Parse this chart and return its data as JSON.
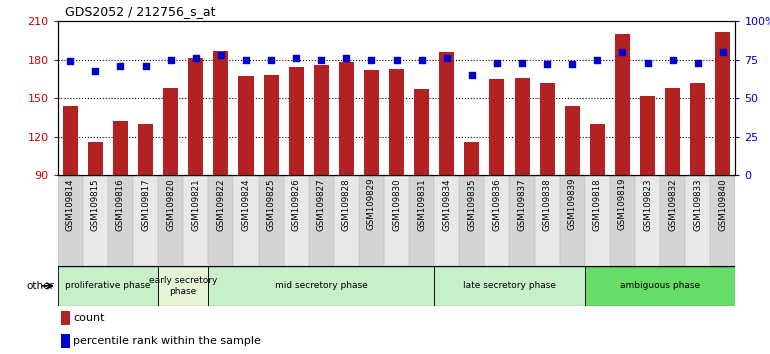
{
  "title": "GDS2052 / 212756_s_at",
  "samples": [
    "GSM109814",
    "GSM109815",
    "GSM109816",
    "GSM109817",
    "GSM109820",
    "GSM109821",
    "GSM109822",
    "GSM109824",
    "GSM109825",
    "GSM109826",
    "GSM109827",
    "GSM109828",
    "GSM109829",
    "GSM109830",
    "GSM109831",
    "GSM109834",
    "GSM109835",
    "GSM109836",
    "GSM109837",
    "GSM109838",
    "GSM109839",
    "GSM109818",
    "GSM109819",
    "GSM109823",
    "GSM109832",
    "GSM109833",
    "GSM109840"
  ],
  "counts": [
    144,
    116,
    132,
    130,
    158,
    181,
    187,
    167,
    168,
    174,
    176,
    178,
    172,
    173,
    157,
    186,
    116,
    165,
    166,
    162,
    144,
    130,
    200,
    152,
    158,
    162,
    202
  ],
  "percentile": [
    74,
    68,
    71,
    71,
    75,
    76,
    78,
    75,
    75,
    76,
    75,
    76,
    75,
    75,
    75,
    76,
    65,
    73,
    73,
    72,
    72,
    75,
    80,
    73,
    75,
    73,
    80
  ],
  "bar_color": "#b22222",
  "dot_color": "#0000cc",
  "ylim_left": [
    90,
    210
  ],
  "ylim_right": [
    0,
    100
  ],
  "yticks_left": [
    90,
    120,
    150,
    180,
    210
  ],
  "yticks_right": [
    0,
    25,
    50,
    75,
    100
  ],
  "ytick_labels_right": [
    "0",
    "25",
    "50",
    "75",
    "100%"
  ],
  "phases": [
    {
      "label": "proliferative phase",
      "start": 0,
      "end": 4,
      "color": "#c8f0c8"
    },
    {
      "label": "early secretory\nphase",
      "start": 4,
      "end": 6,
      "color": "#e8f4d8"
    },
    {
      "label": "mid secretory phase",
      "start": 6,
      "end": 15,
      "color": "#c8f0c8"
    },
    {
      "label": "late secretory phase",
      "start": 15,
      "end": 21,
      "color": "#c8f0c8"
    },
    {
      "label": "ambiguous phase",
      "start": 21,
      "end": 27,
      "color": "#66dd66"
    }
  ],
  "other_label": "other",
  "legend_count_label": "count",
  "legend_pct_label": "percentile rank within the sample",
  "dotted_line_y": [
    120,
    150,
    180
  ],
  "bar_width": 0.6,
  "col_colors_even": "#d4d4d4",
  "col_colors_odd": "#e8e8e8"
}
